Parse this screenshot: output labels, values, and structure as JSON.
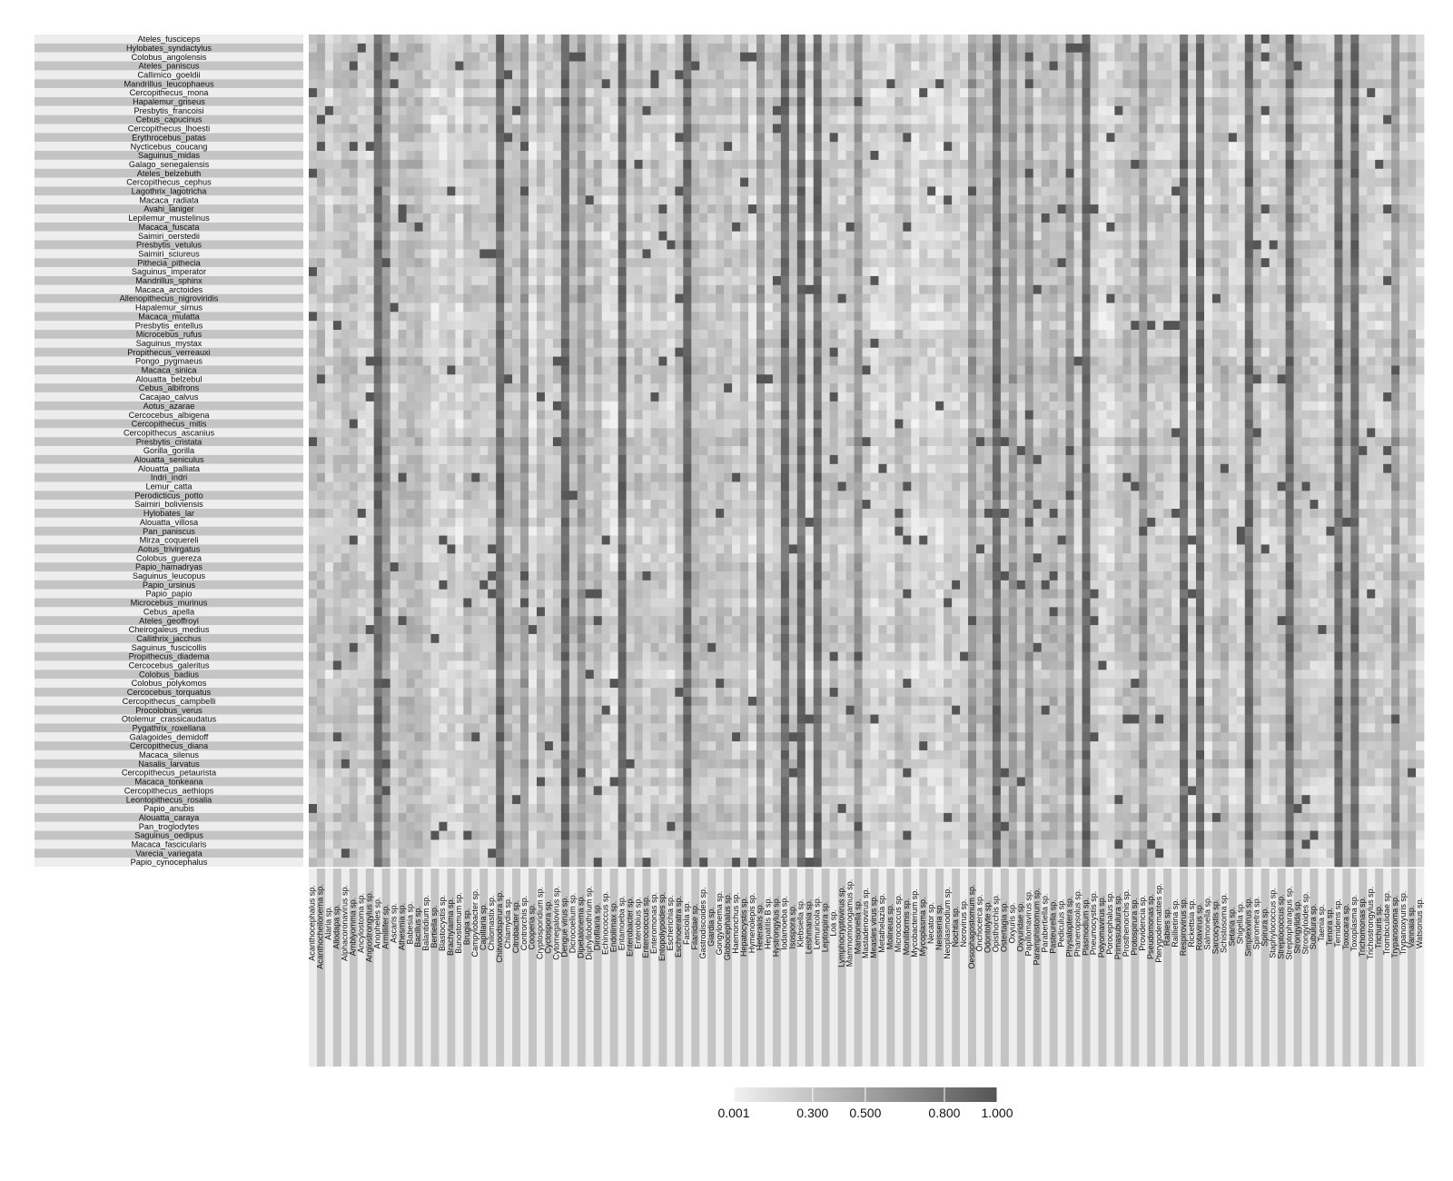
{
  "chart_data": {
    "type": "heatmap",
    "title": "",
    "xlabel": "",
    "ylabel": "",
    "rows": [
      "Ateles_fusciceps",
      "Hylobates_syndactylus",
      "Colobus_angolensis",
      "Ateles_paniscus",
      "Callimico_goeldii",
      "Mandrillus_leucophaeus",
      "Cercopithecus_mona",
      "Hapalemur_griseus",
      "Presbytis_francoisi",
      "Cebus_capucinus",
      "Cercopithecus_lhoesti",
      "Erythrocebus_patas",
      "Nycticebus_coucang",
      "Saguinus_midas",
      "Galago_senegalensis",
      "Ateles_belzebuth",
      "Cercopithecus_cephus",
      "Lagothrix_lagotricha",
      "Macaca_radiata",
      "Avahi_laniger",
      "Lepilemur_mustelinus",
      "Macaca_fuscata",
      "Saimiri_oerstedii",
      "Presbytis_vetulus",
      "Saimiri_sciureus",
      "Pithecia_pithecia",
      "Saguinus_imperator",
      "Mandrillus_sphinx",
      "Macaca_arctoides",
      "Allenopithecus_nigroviridis",
      "Hapalemur_simus",
      "Macaca_mulatta",
      "Presbytis_entellus",
      "Microcebus_rufus",
      "Saguinus_mystax",
      "Propithecus_verreauxi",
      "Pongo_pygmaeus",
      "Macaca_sinica",
      "Alouatta_belzebul",
      "Cebus_albifrons",
      "Cacajao_calvus",
      "Aotus_azarae",
      "Cercocebus_albigena",
      "Cercopithecus_mitis",
      "Cercopithecus_ascanius",
      "Presbytis_cristata",
      "Gorilla_gorilla",
      "Alouatta_seniculus",
      "Alouatta_palliata",
      "Indri_indri",
      "Lemur_catta",
      "Perodicticus_potto",
      "Saimiri_boliviensis",
      "Hylobates_lar",
      "Alouatta_villosa",
      "Pan_paniscus",
      "Mirza_coquereli",
      "Aotus_trivirgatus",
      "Colobus_guereza",
      "Papio_hamadryas",
      "Saguinus_leucopus",
      "Papio_ursinus",
      "Papio_papio",
      "Microcebus_murinus",
      "Cebus_apella",
      "Ateles_geoffroyi",
      "Cheirogaleus_medius",
      "Callithrix_jacchus",
      "Saguinus_fuscicollis",
      "Propithecus_diadema",
      "Cercocebus_galeritus",
      "Colobus_badius",
      "Colobus_polykomos",
      "Cercocebus_torquatus",
      "Cercopithecus_campbelli",
      "Procolobus_verus",
      "Otolemur_crassicaudatus",
      "Pygathrix_roxellana",
      "Galagoides_demidoff",
      "Cercopithecus_diana",
      "Macaca_silenus",
      "Nasalis_larvatus",
      "Cercopithecus_petaurista",
      "Macaca_tonkeana",
      "Cercopithecus_aethiops",
      "Leontopithecus_rosalia",
      "Papio_anubis",
      "Alouatta_caraya",
      "Pan_troglodytes",
      "Saguinus_oedipus",
      "Macaca_fascicularis",
      "Varecia_variegata",
      "Papio_cynocephalus"
    ],
    "columns": [
      "Acanthocephalus sp.",
      "Acanthocheilonema sp.",
      "Alaria sp.",
      "Allodapa sp.",
      "Alphacoronavirus sp.",
      "Amblyomma sp.",
      "Ancylostoma sp.",
      "Angiostrongylus sp.",
      "Anopheles sp.",
      "Armillifer sp.",
      "Ascaris sp.",
      "Athesmia sp.",
      "Babesia sp.",
      "Bacillus sp.",
      "Balantidium sp.",
      "Bertiella sp.",
      "Blastocystis sp.",
      "Brachylaima sp.",
      "Bunostomum sp.",
      "Brugia sp.",
      "Campylobacter sp.",
      "Capillaria sp.",
      "Chilomastix sp.",
      "Chitwoodspirura sp.",
      "Chlamydia sp.",
      "Citrobacter sp.",
      "Controrchis sp.",
      "Cooperia sp.",
      "Cryptosporidium sp.",
      "Cyclospora sp.",
      "Cytomegalovirus sp.",
      "Dengue virus sp.",
      "Dicrocoelium sp.",
      "Dipetalonema sp.",
      "Diphyllobothrium sp.",
      "Dirofilaria sp.",
      "Echinococcus sp.",
      "Endolimax sp.",
      "Entamoeba sp.",
      "Enterobacter sp.",
      "Enterobius sp.",
      "Enterococcus sp.",
      "Enteromonas sp.",
      "Entopolypoides sp.",
      "Escherichia sp.",
      "Eschnoeratra sp.",
      "Fasciola sp.",
      "Filariidae sp.",
      "Gastrodiscoides sp.",
      "Giardia sp.",
      "Gongylonema sp.",
      "Globocephalus sp.",
      "Haemonchus sp.",
      "Hepatocystis sp.",
      "Hymenolepis sp.",
      "Heterakis sp.",
      "Hepatitis B sp.",
      "Hystrongylus sp.",
      "Iodamoeba sp.",
      "Isospora sp.",
      "Klebsiella sp.",
      "Leishmania sp.",
      "Lemuricola sp.",
      "Leptospira sp.",
      "Loa sp.",
      "Lymphocryptovirus sp.",
      "Mammomonogamus sp.",
      "Mansonella sp.",
      "Mastadenovirus sp.",
      "Measles virus sp.",
      "Metathelazia sp.",
      "Molineus sp.",
      "Micrococcus sp.",
      "Moniliformis sp.",
      "Mycobacterium sp.",
      "Mycoplasma sp.",
      "Necator sp.",
      "Neisseria sp.",
      "Neoplasmodium sp.",
      "Nochtia sp.",
      "Norovirus sp.",
      "Oesophagostomum sp.",
      "Onchocerca sp.",
      "Odontolyte sp.",
      "Opisthorchis sp.",
      "Ostertagia sp.",
      "Oxyuris sp.",
      "Oxyuridae sp.",
      "Papillomavirus sp.",
      "Paramphistomum sp.",
      "Parabertiella sp.",
      "Pasteurella sp.",
      "Pediculus sp.",
      "Physaloptera sp.",
      "Phaneropsolus sp.",
      "Plasmodium sp.",
      "Pneumocystis sp.",
      "Polyomavirus sp.",
      "Porocephalus sp.",
      "Primasubulura sp.",
      "Prosthenorchis sp.",
      "Protospirura sp.",
      "Providencia sp.",
      "Pseudomonas sp.",
      "Pterygodermatites sp.",
      "Rabies sp.",
      "Raillietina sp.",
      "Respirovirus sp.",
      "Rickettsia sp.",
      "Rotavirus sp.",
      "Salmonella sp.",
      "Sarcocystis sp.",
      "Schistosoma sp.",
      "Setaria sp.",
      "Shigella sp.",
      "Simplexvirus sp.",
      "Spirometra sp.",
      "Spirura sp.",
      "Staphylococcus sp.",
      "Streptococcus sp.",
      "Streptopharagus sp.",
      "Strongylida sp.",
      "Strongyloides sp.",
      "Subulura sp.",
      "Taenia sp.",
      "Tenora sp.",
      "Ternidens sp.",
      "Toxocara sp.",
      "Toxoplasma sp.",
      "Trichomonas sp.",
      "Trichostrongylus sp.",
      "Trichuris sp.",
      "Trombiculidae sp.",
      "Trypanosoma sp.",
      "Trypanoxyuris sp.",
      "Vannaia sp.",
      "Watsonius sp."
    ],
    "legend": {
      "position": "bottom",
      "ticks": [
        "0.001",
        "0.300",
        "0.500",
        "0.800",
        "1.000"
      ],
      "range": [
        0.001,
        1.0
      ],
      "color_low": "#f2f2f2",
      "color_high": "#555555"
    },
    "row_band_colors": [
      "#ededed",
      "#c4c4c4"
    ],
    "value_note": "cell values estimated; dense heatmap of ~93 x 136 cells"
  }
}
